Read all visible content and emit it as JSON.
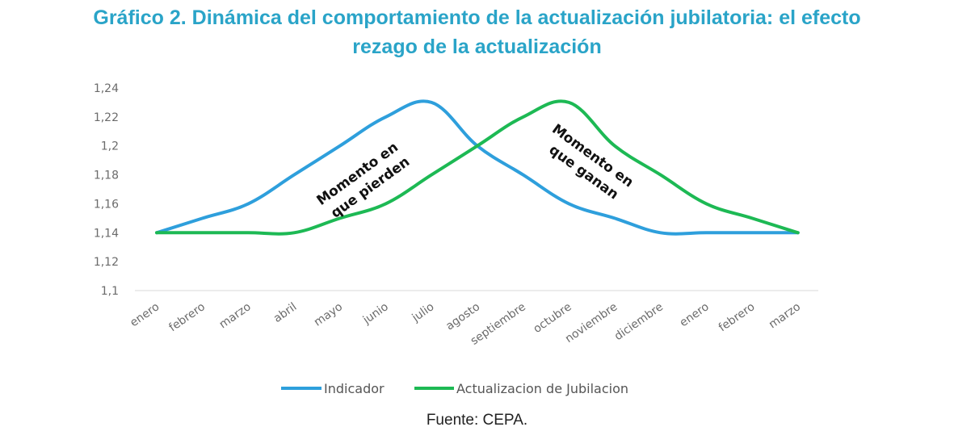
{
  "title_line1": "Gráfico 2. Dinámica del comportamiento de la actualización jubilatoria: el efecto",
  "title_line2": "rezago de la actualización",
  "source": "Fuente: CEPA.",
  "chart_data": {
    "type": "line",
    "categories": [
      "enero",
      "febrero",
      "marzo",
      "abril",
      "mayo",
      "junio",
      "julio",
      "agosto",
      "septiembre",
      "octubre",
      "noviembre",
      "diciembre",
      "enero",
      "febrero",
      "marzo"
    ],
    "series": [
      {
        "name": "Indicador",
        "color": "#2e9fdc",
        "values": [
          1.14,
          1.15,
          1.16,
          1.18,
          1.2,
          1.22,
          1.23,
          1.2,
          1.18,
          1.16,
          1.15,
          1.14,
          1.14,
          1.14,
          1.14
        ]
      },
      {
        "name": "Actualizacion de Jubilacion",
        "color": "#1db954",
        "values": [
          1.14,
          1.14,
          1.14,
          1.14,
          1.15,
          1.16,
          1.18,
          1.2,
          1.22,
          1.23,
          1.2,
          1.18,
          1.16,
          1.15,
          1.14
        ]
      }
    ],
    "y_ticks": [
      "1,1",
      "1,12",
      "1,14",
      "1,16",
      "1,18",
      "1,2",
      "1,22",
      "1,24"
    ],
    "ylim": [
      1.1,
      1.24
    ],
    "annotations": [
      {
        "lines": [
          "Momento en",
          "que pierden"
        ]
      },
      {
        "lines": [
          "Momento en",
          "que ganan"
        ]
      }
    ],
    "legend_position": "bottom"
  }
}
